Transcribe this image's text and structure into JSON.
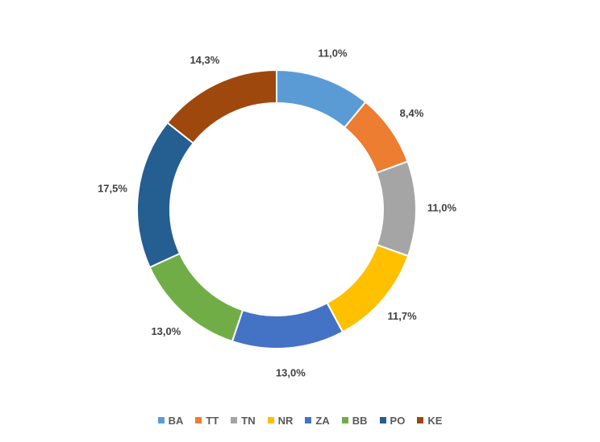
{
  "chart_data": {
    "type": "pie",
    "variant": "doughnut",
    "title": "",
    "legend_position": "bottom",
    "categories": [
      "BA",
      "TT",
      "TN",
      "NR",
      "ZA",
      "BB",
      "PO",
      "KE"
    ],
    "values": [
      11.0,
      8.4,
      11.0,
      11.7,
      13.0,
      13.0,
      17.5,
      14.3
    ],
    "labels": [
      "11,0%",
      "8,4%",
      "11,0%",
      "11,7%",
      "13,0%",
      "13,0%",
      "17,5%",
      "14,3%"
    ],
    "colors": [
      "#5B9BD5",
      "#ED7D31",
      "#A5A5A5",
      "#FFC000",
      "#4472C4",
      "#70AD47",
      "#255E91",
      "#9E480E"
    ],
    "unit": "%"
  }
}
